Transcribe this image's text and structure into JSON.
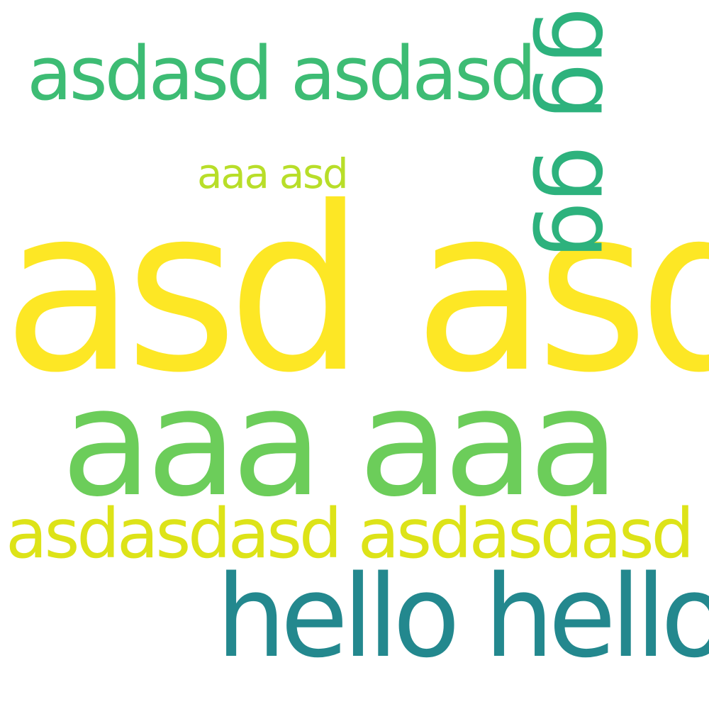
{
  "words": [
    {
      "id": "asd-asd",
      "text": "asd asd",
      "color": "#fde725"
    },
    {
      "id": "aaa-aaa",
      "text": "aaa aaa",
      "color": "#6ccd5a"
    },
    {
      "id": "asdasdasd",
      "text": "asdasdasd asdasdasd",
      "color": "#dde318"
    },
    {
      "id": "hello-hello",
      "text": "hello hello",
      "color": "#23888e"
    },
    {
      "id": "asdasd-asdasd",
      "text": "asdasd asdasd",
      "color": "#3dbc74"
    },
    {
      "id": "aaa-asd",
      "text": "aaa asd",
      "color": "#b8de29"
    },
    {
      "id": "gg-gg",
      "text": "gg gg",
      "color": "#2db27d"
    }
  ]
}
